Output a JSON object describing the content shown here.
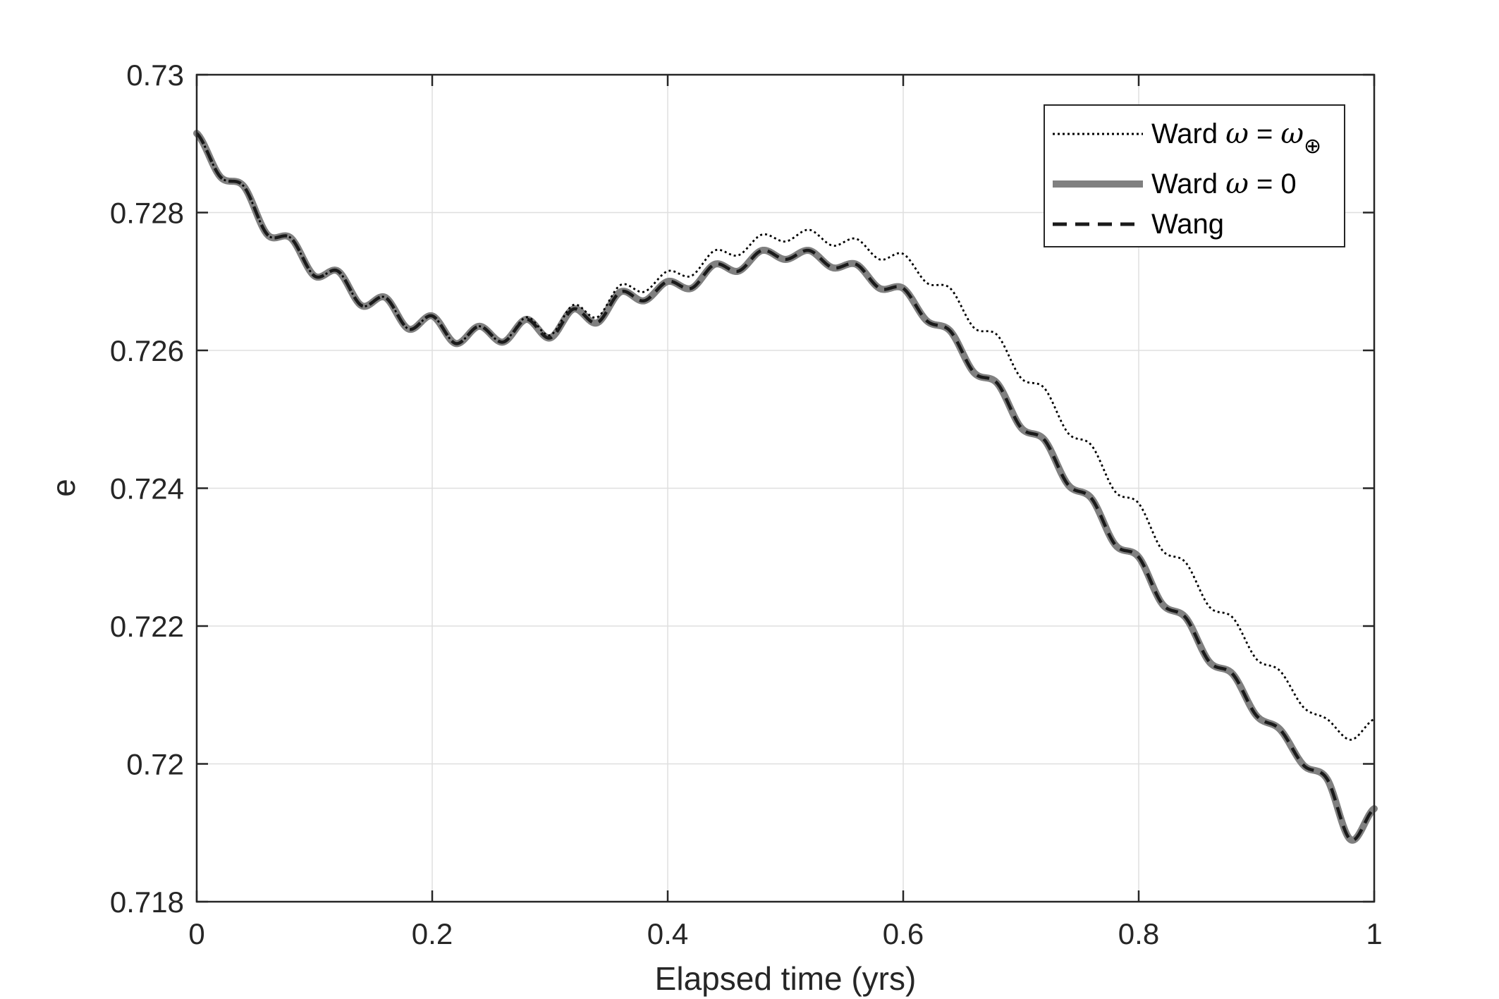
{
  "chart_data": {
    "type": "line",
    "xlabel": "Elapsed time (yrs)",
    "ylabel": "e",
    "xlim": [
      0,
      1
    ],
    "ylim": [
      0.718,
      0.73
    ],
    "x_ticks": [
      0,
      0.2,
      0.4,
      0.6,
      0.8,
      1
    ],
    "x_tick_labels": [
      "0",
      "0.2",
      "0.4",
      "0.6",
      "0.8",
      "1"
    ],
    "y_ticks": [
      0.718,
      0.72,
      0.722,
      0.724,
      0.726,
      0.728,
      0.73
    ],
    "y_tick_labels": [
      "0.718",
      "0.72",
      "0.722",
      "0.724",
      "0.726",
      "0.728",
      "0.73"
    ],
    "grid": true,
    "legend_position": "top-right",
    "series": [
      {
        "name": "Ward ω = ω⊕",
        "legend_prefix": "Ward ",
        "legend_symbol": "ω",
        "legend_middle": " = ",
        "legend_symbol2": "ω",
        "legend_subscript": "⊕",
        "style": "dotted",
        "color": "#000000",
        "x": [
          0,
          0.02,
          0.04,
          0.06,
          0.08,
          0.1,
          0.12,
          0.14,
          0.16,
          0.18,
          0.2,
          0.22,
          0.24,
          0.26,
          0.28,
          0.3,
          0.32,
          0.34,
          0.36,
          0.38,
          0.4,
          0.42,
          0.44,
          0.46,
          0.48,
          0.5,
          0.52,
          0.54,
          0.56,
          0.58,
          0.6,
          0.62,
          0.64,
          0.66,
          0.68,
          0.7,
          0.72,
          0.74,
          0.76,
          0.78,
          0.8,
          0.82,
          0.84,
          0.86,
          0.88,
          0.9,
          0.92,
          0.94,
          0.96,
          0.98,
          1.0
        ],
        "y": [
          0.72915,
          0.72852,
          0.72838,
          0.72768,
          0.72763,
          0.72708,
          0.72715,
          0.72665,
          0.72677,
          0.72631,
          0.7265,
          0.7261,
          0.72635,
          0.72612,
          0.72648,
          0.72622,
          0.72666,
          0.72648,
          0.72695,
          0.72685,
          0.72715,
          0.72708,
          0.72745,
          0.72738,
          0.72768,
          0.72758,
          0.72775,
          0.72752,
          0.72762,
          0.72732,
          0.7274,
          0.72698,
          0.7269,
          0.72633,
          0.72622,
          0.7256,
          0.72545,
          0.7248,
          0.72462,
          0.72395,
          0.72378,
          0.7231,
          0.72292,
          0.72228,
          0.72212,
          0.72152,
          0.72135,
          0.72082,
          0.72065,
          0.72035,
          0.72065
        ],
        "ripple": 0.00012
      },
      {
        "name": "Ward ω = 0",
        "legend_prefix": "Ward ",
        "legend_symbol": "ω",
        "legend_middle": " = 0",
        "style": "solid-thick",
        "color": "#808080",
        "x": [
          0,
          0.02,
          0.04,
          0.06,
          0.08,
          0.1,
          0.12,
          0.14,
          0.16,
          0.18,
          0.2,
          0.22,
          0.24,
          0.26,
          0.28,
          0.3,
          0.32,
          0.34,
          0.36,
          0.38,
          0.4,
          0.42,
          0.44,
          0.46,
          0.48,
          0.5,
          0.52,
          0.54,
          0.56,
          0.58,
          0.6,
          0.62,
          0.64,
          0.66,
          0.68,
          0.7,
          0.72,
          0.74,
          0.76,
          0.78,
          0.8,
          0.82,
          0.84,
          0.86,
          0.88,
          0.9,
          0.92,
          0.94,
          0.96,
          0.98,
          1.0
        ],
        "y": [
          0.72915,
          0.72852,
          0.72838,
          0.72768,
          0.72763,
          0.72708,
          0.72715,
          0.72665,
          0.72677,
          0.72631,
          0.7265,
          0.7261,
          0.72635,
          0.72612,
          0.72645,
          0.72618,
          0.7266,
          0.7264,
          0.72685,
          0.72672,
          0.727,
          0.7269,
          0.72725,
          0.72715,
          0.72745,
          0.72732,
          0.72745,
          0.7272,
          0.72725,
          0.7269,
          0.7269,
          0.72643,
          0.72628,
          0.72568,
          0.72552,
          0.72488,
          0.7247,
          0.72405,
          0.72385,
          0.72318,
          0.723,
          0.72232,
          0.72212,
          0.72148,
          0.7213,
          0.7207,
          0.7205,
          0.71998,
          0.71978,
          0.7189,
          0.71935
        ],
        "ripple": 0.00012
      },
      {
        "name": "Wang",
        "legend_prefix": "Wang",
        "style": "dashed",
        "color": "#1a1a1a",
        "x": [
          0,
          0.02,
          0.04,
          0.06,
          0.08,
          0.1,
          0.12,
          0.14,
          0.16,
          0.18,
          0.2,
          0.22,
          0.24,
          0.26,
          0.28,
          0.3,
          0.32,
          0.34,
          0.36,
          0.38,
          0.4,
          0.42,
          0.44,
          0.46,
          0.48,
          0.5,
          0.52,
          0.54,
          0.56,
          0.58,
          0.6,
          0.62,
          0.64,
          0.66,
          0.68,
          0.7,
          0.72,
          0.74,
          0.76,
          0.78,
          0.8,
          0.82,
          0.84,
          0.86,
          0.88,
          0.9,
          0.92,
          0.94,
          0.96,
          0.98,
          1.0
        ],
        "y": [
          0.72915,
          0.72852,
          0.72838,
          0.72768,
          0.72763,
          0.72708,
          0.72715,
          0.72665,
          0.72677,
          0.72631,
          0.7265,
          0.7261,
          0.72635,
          0.72612,
          0.72645,
          0.72618,
          0.7266,
          0.7264,
          0.72685,
          0.72672,
          0.727,
          0.7269,
          0.72725,
          0.72715,
          0.72745,
          0.72732,
          0.72745,
          0.7272,
          0.72725,
          0.7269,
          0.7269,
          0.72643,
          0.72628,
          0.72568,
          0.72552,
          0.72488,
          0.7247,
          0.72405,
          0.72385,
          0.72318,
          0.723,
          0.72232,
          0.72212,
          0.72148,
          0.7213,
          0.7207,
          0.7205,
          0.71998,
          0.71978,
          0.7189,
          0.71935
        ],
        "ripple": 0.00012
      }
    ]
  }
}
